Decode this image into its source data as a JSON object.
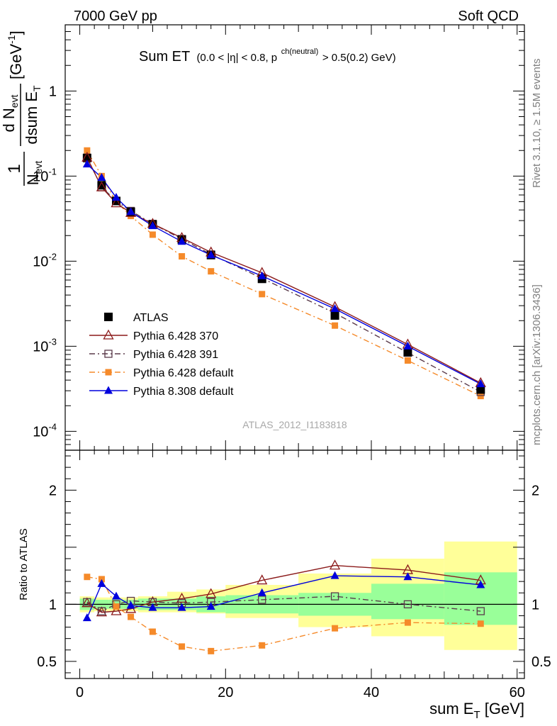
{
  "header": {
    "left": "7000 GeV pp",
    "right": "Soft QCD"
  },
  "side_labels": {
    "upper": "Rivet 3.1.10, ≥ 1.5M events",
    "lower": "mcplots.cern.ch [arXiv:1306.3436]"
  },
  "plot_title": {
    "main": "Sum ET",
    "cut_a": "(0.0 < |η| < 0.8, p",
    "cut_sup": "ch(neutral)",
    "cut_b": " > 0.5(0.2) GeV)"
  },
  "watermark": "ATLAS_2012_I1183818",
  "axes": {
    "ylabel_top": "[GeV",
    "ylabel_top_exp": "-1",
    "ylabel_top_close": "]",
    "ylabel_ratio": "Ratio to ATLAS",
    "xlabel": "sum E",
    "xlabel_sub": "T",
    "xlabel_unit": " [GeV]",
    "frac_one": "1",
    "frac_n": "N",
    "frac_n_sub": "evt",
    "frac_dn": "d N",
    "frac_dn_sub": "evt",
    "frac_dsum": "dsum E",
    "frac_dsum_sub": "T"
  },
  "colors": {
    "atlas": "#000000",
    "p6_370": "#8b1a1a",
    "p6_391": "#5a3a4a",
    "p6_default": "#f58a2a",
    "p8_default": "#0000dd",
    "band_inner": "#99ff99",
    "band_outer": "#ffff99"
  },
  "chart_data": {
    "type": "line",
    "x": [
      1,
      3,
      5,
      7,
      10,
      14,
      18,
      25,
      35,
      45,
      55
    ],
    "x_edges": [
      0,
      2,
      4,
      6,
      8,
      12,
      16,
      20,
      30,
      40,
      50,
      60
    ],
    "xlim": [
      -2,
      61
    ],
    "ylim": [
      6e-05,
      6
    ],
    "yscale": "log",
    "ratio_ylim": [
      0.35,
      2.35
    ],
    "x_ticks": [
      "0",
      "20",
      "40",
      "60"
    ],
    "y_ticks": [
      {
        "base": "10",
        "exp": "-4",
        "v": 0.0001
      },
      {
        "base": "10",
        "exp": "-3",
        "v": 0.001
      },
      {
        "base": "10",
        "exp": "-2",
        "v": 0.01
      },
      {
        "base": "10",
        "exp": "-1",
        "v": 0.1
      },
      {
        "base": "1",
        "exp": "",
        "v": 1
      }
    ],
    "ratio_ticks": [
      {
        "label": "0.5",
        "v": 0.5
      },
      {
        "label": "1",
        "v": 1
      },
      {
        "label": "2",
        "v": 2
      }
    ],
    "series": [
      {
        "name": "ATLAS",
        "key": "atlas",
        "marker": "square-filled",
        "line": "none",
        "values": [
          0.163,
          0.078,
          0.051,
          0.038,
          0.027,
          0.018,
          0.0118,
          0.0062,
          0.0023,
          0.00085,
          0.00031
        ]
      },
      {
        "name": "Pythia 6.428 370",
        "key": "p6_370",
        "marker": "triangle-open",
        "line": "solid",
        "values": [
          0.165,
          0.074,
          0.048,
          0.037,
          0.0275,
          0.0188,
          0.0127,
          0.0073,
          0.0029,
          0.00105,
          0.00037
        ]
      },
      {
        "name": "Pythia 6.428 391",
        "key": "p6_391",
        "marker": "square-open",
        "line": "dashdot",
        "values": [
          0.165,
          0.074,
          0.051,
          0.039,
          0.0275,
          0.0182,
          0.012,
          0.0063,
          0.00245,
          0.00084,
          0.00029
        ]
      },
      {
        "name": "Pythia 6.428 default",
        "key": "p6_default",
        "marker": "square-filled-small",
        "line": "dashdot",
        "values": [
          0.2,
          0.1,
          0.05,
          0.034,
          0.0205,
          0.0114,
          0.0076,
          0.0041,
          0.00175,
          0.00068,
          0.00026
        ]
      },
      {
        "name": "Pythia 8.308 default",
        "key": "p8_default",
        "marker": "triangle-filled",
        "line": "solid",
        "values": [
          0.138,
          0.096,
          0.056,
          0.038,
          0.026,
          0.017,
          0.0118,
          0.0067,
          0.00275,
          0.001,
          0.00036
        ]
      }
    ],
    "ratios": [
      {
        "key": "p6_370",
        "values": [
          1.01,
          0.93,
          0.94,
          0.96,
          1.02,
          1.05,
          1.09,
          1.21,
          1.34,
          1.3,
          1.21
        ]
      },
      {
        "key": "p6_391",
        "values": [
          1.02,
          0.94,
          1.0,
          1.03,
          1.02,
          1.01,
          1.02,
          1.04,
          1.07,
          1.0,
          0.94
        ]
      },
      {
        "key": "p6_default",
        "values": [
          1.24,
          1.22,
          0.98,
          0.89,
          0.76,
          0.63,
          0.59,
          0.64,
          0.79,
          0.84,
          0.83
        ]
      },
      {
        "key": "p8_default",
        "values": [
          0.88,
          1.18,
          1.07,
          0.99,
          0.97,
          0.97,
          0.98,
          1.1,
          1.25,
          1.24,
          1.17
        ]
      }
    ],
    "band_inner": [
      [
        0.95,
        1.05
      ],
      [
        0.96,
        1.04
      ],
      [
        0.96,
        1.04
      ],
      [
        0.96,
        1.04
      ],
      [
        0.95,
        1.05
      ],
      [
        0.95,
        1.05
      ],
      [
        0.93,
        1.07
      ],
      [
        0.92,
        1.08
      ],
      [
        0.9,
        1.1
      ],
      [
        0.87,
        1.18
      ],
      [
        0.82,
        1.28
      ]
    ],
    "band_outer": [
      [
        0.93,
        1.07
      ],
      [
        0.94,
        1.06
      ],
      [
        0.94,
        1.06
      ],
      [
        0.94,
        1.06
      ],
      [
        0.93,
        1.07
      ],
      [
        0.93,
        1.11
      ],
      [
        0.92,
        1.13
      ],
      [
        0.88,
        1.17
      ],
      [
        0.8,
        1.27
      ],
      [
        0.72,
        1.4
      ],
      [
        0.6,
        1.55
      ]
    ],
    "legend_position": "lower-left",
    "grid": false
  }
}
